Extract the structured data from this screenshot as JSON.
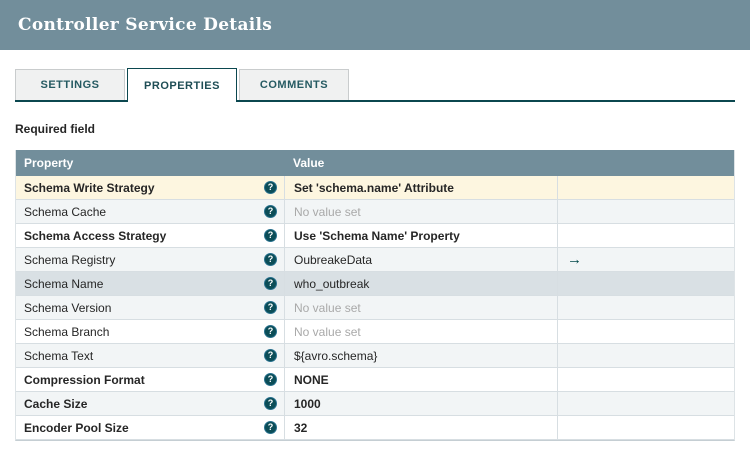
{
  "header": {
    "title": "Controller Service Details"
  },
  "tabs": [
    {
      "label": "SETTINGS",
      "active": false
    },
    {
      "label": "PROPERTIES",
      "active": true
    },
    {
      "label": "COMMENTS",
      "active": false
    }
  ],
  "legend": {
    "required_field": "Required field"
  },
  "table": {
    "columns": [
      "Property",
      "Value"
    ],
    "rows": [
      {
        "property": "Schema Write Strategy",
        "required": true,
        "value": "Set 'schema.name' Attribute",
        "value_set": true,
        "state": "selected",
        "goto": false
      },
      {
        "property": "Schema Cache",
        "required": false,
        "value": "No value set",
        "value_set": false,
        "state": null,
        "goto": false
      },
      {
        "property": "Schema Access Strategy",
        "required": true,
        "value": "Use 'Schema Name' Property",
        "value_set": true,
        "state": null,
        "goto": false
      },
      {
        "property": "Schema Registry",
        "required": false,
        "value": "OubreakeData",
        "value_set": true,
        "state": null,
        "goto": true
      },
      {
        "property": "Schema Name",
        "required": false,
        "value": "who_outbreak",
        "value_set": true,
        "state": "hover",
        "goto": false
      },
      {
        "property": "Schema Version",
        "required": false,
        "value": "No value set",
        "value_set": false,
        "state": null,
        "goto": false
      },
      {
        "property": "Schema Branch",
        "required": false,
        "value": "No value set",
        "value_set": false,
        "state": null,
        "goto": false
      },
      {
        "property": "Schema Text",
        "required": false,
        "value": "${avro.schema}",
        "value_set": true,
        "state": null,
        "goto": false
      },
      {
        "property": "Compression Format",
        "required": true,
        "value": "NONE",
        "value_set": true,
        "state": null,
        "goto": false
      },
      {
        "property": "Cache Size",
        "required": true,
        "value": "1000",
        "value_set": true,
        "state": null,
        "goto": false
      },
      {
        "property": "Encoder Pool Size",
        "required": true,
        "value": "32",
        "value_set": true,
        "state": null,
        "goto": false
      }
    ]
  },
  "icons": {
    "help": "?",
    "goto": "→"
  },
  "colors": {
    "title_bar": "#728e9b",
    "table_header": "#728e9b",
    "active_tab_border": "#0b474f",
    "tab_text": "#255a62",
    "selected_row": "#fdf6e0",
    "hover_row": "#d9e0e4",
    "alt_row": "#f2f5f6",
    "row_border": "#d7dee2",
    "value_text": "#262626",
    "no_value_text": "#a9a9a9",
    "help_icon_bg": "#0b4d57",
    "goto_arrow": "#004849"
  }
}
